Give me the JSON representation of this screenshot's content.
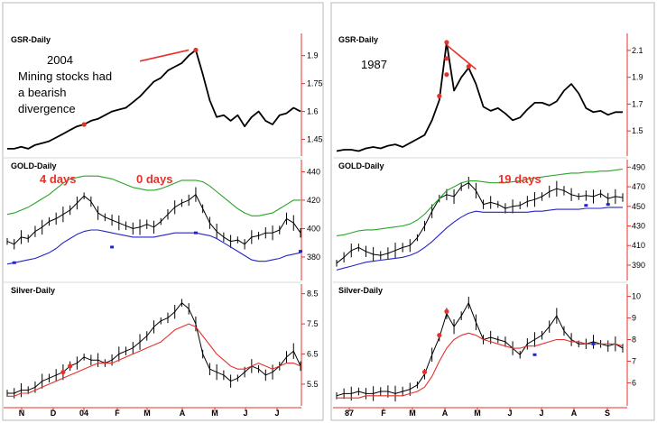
{
  "chart_data": [
    {
      "type": "line",
      "panel": "left",
      "year_label": "2004",
      "note": "Mining stocks had a bearish divergence",
      "x_ticks": [
        "N",
        "D",
        "04",
        "F",
        "M",
        "A",
        "M",
        "J",
        "J"
      ],
      "subplots": [
        {
          "title": "GSR-Daily",
          "y_ticks": [
            1.45,
            1.6,
            1.75,
            1.9
          ],
          "ylim": [
            1.38,
            2.0
          ],
          "series": [
            {
              "values": [
                1.4,
                1.4,
                1.41,
                1.4,
                1.42,
                1.43,
                1.44,
                1.46,
                1.48,
                1.5,
                1.52,
                1.53,
                1.55,
                1.56,
                1.58,
                1.6,
                1.61,
                1.62,
                1.65,
                1.68,
                1.72,
                1.76,
                1.78,
                1.82,
                1.84,
                1.86,
                1.9,
                1.93,
                1.8,
                1.66,
                1.57,
                1.58,
                1.55,
                1.58,
                1.52,
                1.57,
                1.6,
                1.55,
                1.53,
                1.58,
                1.59,
                1.62,
                1.6
              ]
            }
          ],
          "markers": [
            {
              "x": 11,
              "y": 1.53
            },
            {
              "x": 27,
              "y": 1.93
            }
          ],
          "trend_line": {
            "from": {
              "x": 19,
              "y": 1.87
            },
            "to": {
              "x": 26,
              "y": 1.93
            }
          }
        },
        {
          "title": "GOLD-Daily",
          "y_ticks": [
            380,
            400,
            420,
            440
          ],
          "ylim": [
            366,
            446
          ],
          "series": [
            {
              "values": [
                391,
                389,
                394,
                393,
                398,
                401,
                405,
                407,
                410,
                413,
                418,
                423,
                419,
                411,
                408,
                406,
                404,
                402,
                400,
                401,
                403,
                401,
                405,
                410,
                415,
                418,
                420,
                424,
                414,
                404,
                398,
                394,
                391,
                392,
                389,
                394,
                395,
                397,
                397,
                399,
                407,
                404,
                397
              ]
            },
            {
              "values": [
                410,
                411,
                413,
                415,
                418,
                421,
                424,
                428,
                432,
                435,
                436,
                437,
                437,
                437,
                436,
                435,
                433,
                431,
                429,
                428,
                427,
                427,
                428,
                430,
                432,
                434,
                434,
                434,
                433,
                430,
                426,
                422,
                418,
                414,
                411,
                409,
                409,
                410,
                411,
                414,
                417,
                420,
                420
              ]
            },
            {
              "values": [
                375,
                376,
                377,
                378,
                379,
                381,
                383,
                386,
                390,
                393,
                396,
                398,
                399,
                399,
                398,
                397,
                396,
                395,
                394,
                394,
                394,
                394,
                395,
                396,
                397,
                397,
                397,
                397,
                396,
                395,
                393,
                390,
                387,
                384,
                381,
                378,
                377,
                377,
                378,
                379,
                381,
                382,
                383
              ]
            }
          ],
          "markers": [
            {
              "x": 1,
              "y": 376
            },
            {
              "x": 15,
              "y": 387
            },
            {
              "x": 27,
              "y": 397
            },
            {
              "x": 42,
              "y": 384
            }
          ],
          "annotations": [
            "4 days",
            "0 days"
          ]
        },
        {
          "title": "Silver-Daily",
          "y_ticks": [
            5.5,
            6.5,
            7.5,
            8.5
          ],
          "ylim": [
            4.9,
            8.7
          ],
          "series": [
            {
              "values": [
                5.2,
                5.2,
                5.3,
                5.3,
                5.4,
                5.6,
                5.7,
                5.8,
                5.9,
                6.1,
                6.2,
                6.4,
                6.3,
                6.3,
                6.2,
                6.3,
                6.5,
                6.6,
                6.7,
                6.9,
                7.1,
                7.4,
                7.6,
                7.7,
                7.9,
                8.2,
                8.0,
                7.5,
                6.5,
                6.0,
                5.9,
                5.8,
                5.6,
                5.7,
                5.9,
                6.1,
                6.0,
                5.8,
                5.9,
                6.1,
                6.4,
                6.6,
                6.1
              ]
            },
            {
              "values": [
                5.1,
                5.1,
                5.2,
                5.2,
                5.3,
                5.4,
                5.5,
                5.6,
                5.7,
                5.8,
                5.9,
                6.0,
                6.1,
                6.2,
                6.2,
                6.2,
                6.3,
                6.4,
                6.5,
                6.6,
                6.7,
                6.8,
                6.9,
                7.1,
                7.3,
                7.4,
                7.5,
                7.4,
                7.1,
                6.8,
                6.5,
                6.3,
                6.1,
                6.0,
                6.0,
                6.1,
                6.2,
                6.1,
                6.0,
                6.1,
                6.2,
                6.2,
                6.1
              ]
            }
          ],
          "markers": [
            {
              "x": 8,
              "y": 5.9
            },
            {
              "x": 9,
              "y": 6.1
            }
          ]
        }
      ]
    },
    {
      "type": "line",
      "panel": "right",
      "year_label": "1987",
      "x_ticks": [
        "87",
        "F",
        "M",
        "A",
        "M",
        "J",
        "J",
        "A",
        "S"
      ],
      "subplots": [
        {
          "title": "GSR-Daily",
          "y_ticks": [
            1.5,
            1.7,
            1.9,
            2.1
          ],
          "ylim": [
            1.34,
            2.2
          ],
          "series": [
            {
              "values": [
                1.35,
                1.36,
                1.36,
                1.35,
                1.37,
                1.38,
                1.37,
                1.39,
                1.4,
                1.38,
                1.41,
                1.44,
                1.47,
                1.58,
                1.73,
                2.16,
                1.8,
                1.9,
                1.97,
                1.85,
                1.68,
                1.65,
                1.67,
                1.63,
                1.58,
                1.6,
                1.66,
                1.71,
                1.71,
                1.69,
                1.72,
                1.8,
                1.85,
                1.78,
                1.67,
                1.64,
                1.65,
                1.62,
                1.64,
                1.64
              ]
            }
          ],
          "markers": [
            {
              "x": 14,
              "y": 1.76
            },
            {
              "x": 15,
              "y": 1.92
            },
            {
              "x": 15,
              "y": 2.04
            },
            {
              "x": 15,
              "y": 2.16
            },
            {
              "x": 18,
              "y": 1.98
            }
          ],
          "trend_line": {
            "from": {
              "x": 15,
              "y": 2.14
            },
            "to": {
              "x": 19,
              "y": 1.96
            }
          }
        },
        {
          "title": "GOLD-Daily",
          "y_ticks": [
            390,
            410,
            430,
            450,
            470,
            490
          ],
          "ylim": [
            378,
            494
          ],
          "series": [
            {
              "values": [
                392,
                398,
                405,
                408,
                404,
                401,
                400,
                402,
                405,
                408,
                410,
                418,
                430,
                445,
                458,
                462,
                460,
                470,
                474,
                466,
                452,
                454,
                452,
                448,
                450,
                451,
                455,
                457,
                460,
                465,
                468,
                466,
                462,
                460,
                461,
                460,
                463,
                458,
                460,
                459
              ]
            },
            {
              "values": [
                420,
                421,
                423,
                425,
                426,
                426,
                427,
                428,
                429,
                430,
                432,
                436,
                442,
                450,
                458,
                466,
                470,
                474,
                476,
                476,
                475,
                474,
                474,
                474,
                475,
                476,
                478,
                479,
                480,
                481,
                482,
                483,
                484,
                484,
                485,
                485,
                486,
                486,
                487,
                488
              ]
            },
            {
              "values": [
                385,
                387,
                389,
                391,
                393,
                394,
                395,
                396,
                397,
                398,
                400,
                403,
                408,
                414,
                421,
                428,
                434,
                439,
                443,
                445,
                444,
                444,
                444,
                444,
                444,
                444,
                444,
                445,
                445,
                446,
                447,
                447,
                447,
                447,
                448,
                448,
                448,
                449,
                449,
                449
              ]
            }
          ],
          "markers": [
            {
              "x": 34,
              "y": 451
            },
            {
              "x": 37,
              "y": 452
            }
          ],
          "annotations": [
            "19 days"
          ]
        },
        {
          "title": "Silver-Daily",
          "y_ticks": [
            6,
            7,
            8,
            9,
            10
          ],
          "ylim": [
            5.1,
            10.4
          ],
          "series": [
            {
              "values": [
                5.4,
                5.5,
                5.5,
                5.6,
                5.5,
                5.5,
                5.6,
                5.6,
                5.5,
                5.6,
                5.7,
                5.9,
                6.4,
                7.3,
                8.1,
                9.2,
                8.6,
                9.1,
                9.7,
                8.8,
                8.0,
                8.1,
                8.0,
                7.9,
                7.6,
                7.3,
                7.8,
                8.0,
                8.2,
                8.6,
                9.1,
                8.4,
                8.0,
                7.8,
                7.8,
                7.9,
                7.8,
                7.7,
                7.8,
                7.6
              ]
            },
            {
              "values": [
                5.3,
                5.3,
                5.3,
                5.3,
                5.4,
                5.4,
                5.4,
                5.4,
                5.4,
                5.4,
                5.5,
                5.6,
                5.8,
                6.3,
                7.0,
                7.6,
                8.0,
                8.2,
                8.3,
                8.2,
                8.0,
                7.9,
                7.8,
                7.7,
                7.6,
                7.6,
                7.7,
                7.7,
                7.8,
                7.9,
                8.0,
                8.0,
                7.9,
                7.9,
                7.8,
                7.8,
                7.8,
                7.8,
                7.8,
                7.7
              ]
            }
          ],
          "markers": [
            {
              "x": 12,
              "y": 6.5
            },
            {
              "x": 14,
              "y": 8.2
            },
            {
              "x": 15,
              "y": 9.3
            },
            {
              "x": 27,
              "y": 7.3
            },
            {
              "x": 35,
              "y": 7.8
            }
          ]
        }
      ]
    }
  ],
  "colors": {
    "price": "#000000",
    "gsr_line": "#000000",
    "upper_band": "#2aa52a",
    "lower_band": "#2424c8",
    "silver_ma": "#e8302a",
    "marker_red": "#e8302a",
    "marker_blue": "#2424c8",
    "axis": "#e8302a",
    "trend_line": "#e8302a",
    "annotation": "#e8302a"
  }
}
